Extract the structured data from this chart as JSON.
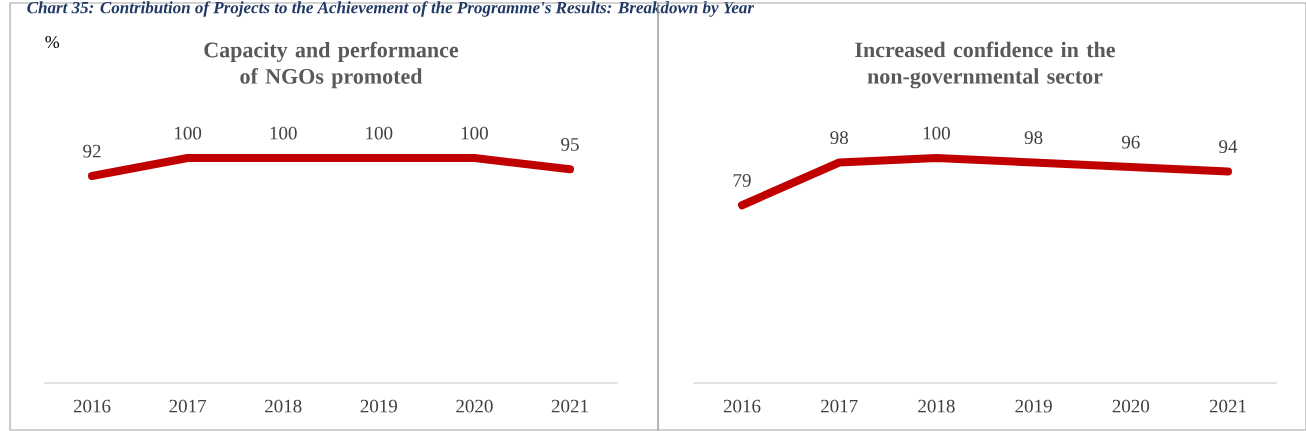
{
  "chart_data": [
    {
      "type": "line",
      "title": "Capacity and performance of NGOs promoted",
      "ylabel": "%",
      "annotations": [
        "Chart 35: Contribution of Projects to the Achievement of the Programme's Results: Breakdown by Year"
      ],
      "categories": [
        "2016",
        "2017",
        "2018",
        "2019",
        "2020",
        "2021"
      ],
      "series": [
        {
          "color": "#c00000",
          "values": [
            92,
            100,
            100,
            100,
            100,
            95
          ]
        }
      ],
      "data_labels": true,
      "marker": "none",
      "line_style": "solid"
    },
    {
      "type": "line",
      "title": "Increased confidence in the non-governmental sector",
      "categories": [
        "2016",
        "2017",
        "2018",
        "2019",
        "2020",
        "2021"
      ],
      "series": [
        {
          "color": "#c00000",
          "values": [
            79,
            98,
            100,
            98,
            96,
            94
          ]
        }
      ],
      "data_labels": true,
      "marker": "none",
      "line_style": "solid"
    }
  ]
}
